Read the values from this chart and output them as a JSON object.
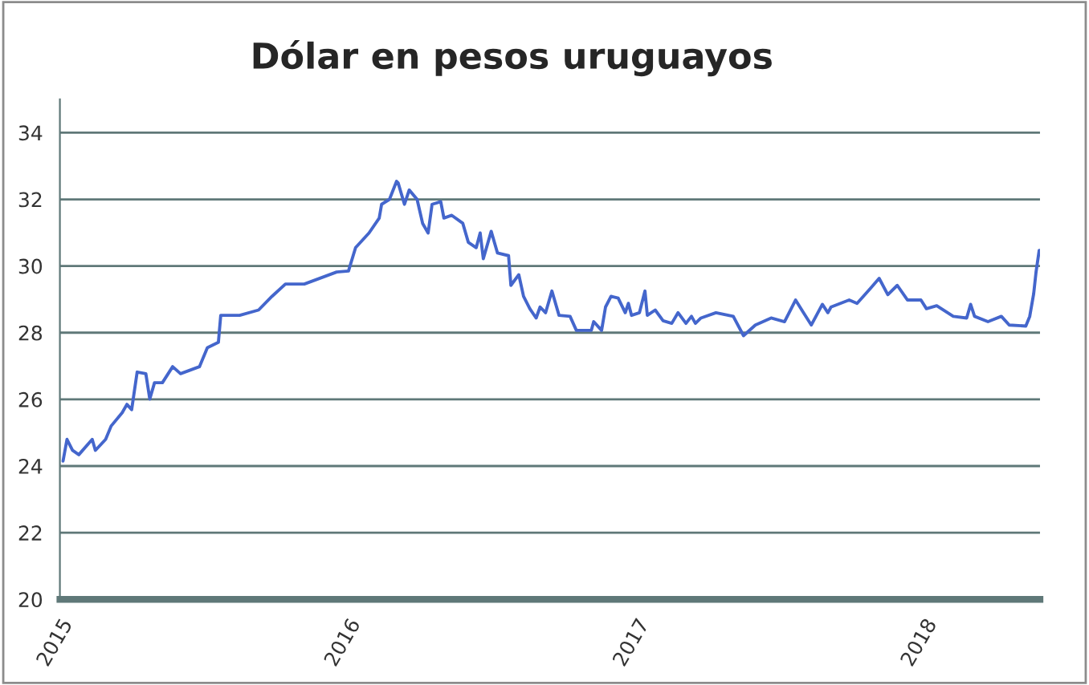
{
  "chart_data": {
    "type": "line",
    "title": "Dólar en pesos uruguayos",
    "x": [
      "2015-01-05",
      "2015-01-10",
      "2015-01-17",
      "2015-01-25",
      "2015-02-11",
      "2015-02-15",
      "2015-02-28",
      "2015-03-07",
      "2015-03-21",
      "2015-03-27",
      "2015-04-02",
      "2015-04-09",
      "2015-04-20",
      "2015-04-25",
      "2015-05-01",
      "2015-05-11",
      "2015-05-24",
      "2015-06-03",
      "2015-06-27",
      "2015-07-07",
      "2015-07-21",
      "2015-07-24",
      "2015-08-07",
      "2015-08-17",
      "2015-09-10",
      "2015-09-27",
      "2015-10-14",
      "2015-11-07",
      "2015-12-18",
      "2016-01-02",
      "2016-01-11",
      "2016-01-28",
      "2016-02-10",
      "2016-02-13",
      "2016-02-23",
      "2016-03-03",
      "2016-03-05",
      "2016-03-13",
      "2016-03-19",
      "2016-03-29",
      "2016-04-05",
      "2016-04-12",
      "2016-04-17",
      "2016-04-28",
      "2016-05-02",
      "2016-05-12",
      "2016-05-26",
      "2016-06-02",
      "2016-06-12",
      "2016-06-17",
      "2016-06-21",
      "2016-07-01",
      "2016-07-09",
      "2016-07-23",
      "2016-07-26",
      "2016-08-05",
      "2016-08-11",
      "2016-08-19",
      "2016-08-27",
      "2016-09-01",
      "2016-09-08",
      "2016-09-16",
      "2016-09-25",
      "2016-10-09",
      "2016-10-17",
      "2016-11-05",
      "2016-11-08",
      "2016-11-18",
      "2016-11-23",
      "2016-11-30",
      "2016-12-09",
      "2016-12-18",
      "2016-12-22",
      "2016-12-26",
      "2017-01-05",
      "2017-01-12",
      "2017-01-15",
      "2017-01-25",
      "2017-02-04",
      "2017-02-15",
      "2017-02-23",
      "2017-03-05",
      "2017-03-12",
      "2017-03-17",
      "2017-03-24",
      "2017-04-12",
      "2017-05-04",
      "2017-05-17",
      "2017-06-01",
      "2017-06-21",
      "2017-07-08",
      "2017-07-22",
      "2017-08-01",
      "2017-08-11",
      "2017-08-25",
      "2017-09-01",
      "2017-09-05",
      "2017-09-28",
      "2017-10-08",
      "2017-10-25",
      "2017-11-05",
      "2017-11-16",
      "2017-11-28",
      "2017-12-11",
      "2017-12-28",
      "2018-01-04",
      "2018-01-17",
      "2018-02-07",
      "2018-02-24",
      "2018-03-01",
      "2018-03-06",
      "2018-03-23",
      "2018-04-09",
      "2018-04-19",
      "2018-05-10",
      "2018-05-15",
      "2018-05-20",
      "2018-05-23",
      "2018-05-27"
    ],
    "series": [
      {
        "color": "#4466cc",
        "values": [
          24.15,
          24.8,
          24.47,
          24.34,
          24.8,
          24.47,
          24.8,
          25.2,
          25.6,
          25.85,
          25.69,
          26.82,
          26.77,
          26.01,
          26.5,
          26.5,
          26.98,
          26.77,
          26.98,
          27.55,
          27.71,
          28.52,
          28.52,
          28.52,
          28.68,
          29.09,
          29.46,
          29.46,
          29.82,
          29.85,
          30.55,
          30.99,
          31.44,
          31.85,
          32.0,
          32.54,
          32.49,
          31.85,
          32.28,
          32.0,
          31.28,
          30.99,
          31.85,
          31.93,
          31.44,
          31.52,
          31.28,
          30.71,
          30.55,
          30.99,
          30.22,
          31.04,
          30.39,
          30.31,
          29.42,
          29.74,
          29.09,
          28.72,
          28.44,
          28.77,
          28.6,
          29.25,
          28.52,
          28.49,
          28.07,
          28.07,
          28.33,
          28.07,
          28.77,
          29.09,
          29.04,
          28.6,
          28.88,
          28.52,
          28.6,
          29.25,
          28.52,
          28.68,
          28.36,
          28.28,
          28.6,
          28.28,
          28.49,
          28.28,
          28.44,
          28.6,
          28.49,
          27.91,
          28.23,
          28.44,
          28.33,
          28.98,
          28.6,
          28.23,
          28.85,
          28.6,
          28.77,
          28.98,
          28.88,
          29.33,
          29.63,
          29.14,
          29.42,
          28.98,
          28.98,
          28.72,
          28.81,
          28.49,
          28.44,
          28.85,
          28.49,
          28.33,
          28.49,
          28.23,
          28.2,
          28.49,
          29.17,
          29.82,
          30.47
        ]
      }
    ],
    "xlim": [
      "2015-01-01",
      "2018-05-28"
    ],
    "xticks": [
      {
        "value": "2015-01-01",
        "label": "2015"
      },
      {
        "value": "2016-01-01",
        "label": "2016"
      },
      {
        "value": "2017-01-01",
        "label": "2017"
      },
      {
        "value": "2018-01-01",
        "label": "2018"
      }
    ],
    "ylim": [
      20,
      35
    ],
    "yticks": [
      20,
      22,
      24,
      26,
      28,
      30,
      32,
      34
    ],
    "grid": "y",
    "legend": false,
    "marker": "none",
    "line_style": "solid"
  }
}
